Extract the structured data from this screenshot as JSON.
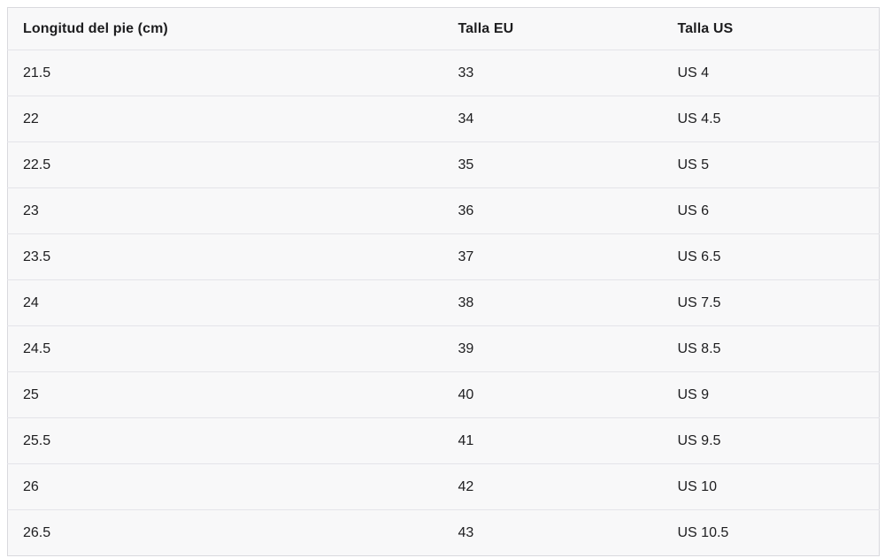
{
  "table": {
    "columns": [
      "Longitud del pie (cm)",
      "Talla EU",
      "Talla US"
    ],
    "rows": [
      [
        "21.5",
        "33",
        "US 4"
      ],
      [
        "22",
        "34",
        "US 4.5"
      ],
      [
        "22.5",
        "35",
        "US 5"
      ],
      [
        "23",
        "36",
        "US 6"
      ],
      [
        "23.5",
        "37",
        "US 6.5"
      ],
      [
        "24",
        "38",
        "US 7.5"
      ],
      [
        "24.5",
        "39",
        "US 8.5"
      ],
      [
        "25",
        "40",
        "US 9"
      ],
      [
        "25.5",
        "41",
        "US 9.5"
      ],
      [
        "26",
        "42",
        "US 10"
      ],
      [
        "26.5",
        "43",
        "US 10.5"
      ]
    ]
  },
  "chart_data": {
    "type": "table",
    "title": "",
    "columns": [
      "Longitud del pie (cm)",
      "Talla EU",
      "Talla US"
    ],
    "rows": [
      [
        "21.5",
        "33",
        "US 4"
      ],
      [
        "22",
        "34",
        "US 4.5"
      ],
      [
        "22.5",
        "35",
        "US 5"
      ],
      [
        "23",
        "36",
        "US 6"
      ],
      [
        "23.5",
        "37",
        "US 6.5"
      ],
      [
        "24",
        "38",
        "US 7.5"
      ],
      [
        "24.5",
        "39",
        "US 8.5"
      ],
      [
        "25",
        "40",
        "US 9"
      ],
      [
        "25.5",
        "41",
        "US 9.5"
      ],
      [
        "26",
        "42",
        "US 10"
      ],
      [
        "26.5",
        "43",
        "US 10.5"
      ]
    ],
    "layout": {
      "header_bold": true,
      "vertical_dividers": false,
      "row_separators": true
    }
  },
  "colors": {
    "page_bg": "#ffffff",
    "cell_bg": "#f8f8f9",
    "row_separator": "#e4e4e9",
    "outer_border": "#d9d9de",
    "text": "#1d1d1f"
  }
}
